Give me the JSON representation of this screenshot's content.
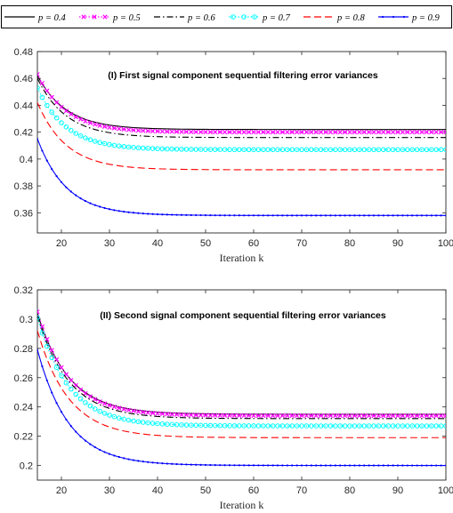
{
  "legend": [
    {
      "label": "p = 0.4",
      "color": "#000000",
      "dash": "solid",
      "marker": "none"
    },
    {
      "label": "p = 0.5",
      "color": "#ff00ff",
      "dash": "dot",
      "marker": "x"
    },
    {
      "label": "p = 0.6",
      "color": "#000000",
      "dash": "dashdot",
      "marker": "none"
    },
    {
      "label": "p = 0.7",
      "color": "#00ffff",
      "dash": "dot",
      "marker": "circle"
    },
    {
      "label": "p = 0.8",
      "color": "#ff0000",
      "dash": "dash",
      "marker": "none"
    },
    {
      "label": "p = 0.9",
      "color": "#0000ff",
      "dash": "solid",
      "marker": "dot"
    }
  ],
  "chart_data": [
    {
      "type": "line",
      "title": "(I) First signal component sequential filtering error variances",
      "xlabel": "Iteration k",
      "ylabel": "",
      "xlim": [
        15,
        100
      ],
      "ylim": [
        0.345,
        0.48
      ],
      "xticks": [
        20,
        30,
        40,
        50,
        60,
        70,
        80,
        90,
        100
      ],
      "yticks": [
        0.36,
        0.38,
        0.4,
        0.42,
        0.44,
        0.46,
        0.48
      ],
      "ytick_labels": [
        "0.36",
        "0.38",
        "0.4",
        "0.42",
        "0.44",
        "0.46",
        "0.48"
      ],
      "series": [
        {
          "name": "p = 0.4",
          "start": 0.462,
          "end": 0.422,
          "tau": 6.0
        },
        {
          "name": "p = 0.5",
          "start": 0.463,
          "end": 0.42,
          "tau": 6.0
        },
        {
          "name": "p = 0.6",
          "start": 0.46,
          "end": 0.416,
          "tau": 6.0
        },
        {
          "name": "p = 0.7",
          "start": 0.453,
          "end": 0.407,
          "tau": 6.0
        },
        {
          "name": "p = 0.8",
          "start": 0.442,
          "end": 0.392,
          "tau": 6.0
        },
        {
          "name": "p = 0.9",
          "start": 0.415,
          "end": 0.358,
          "tau": 6.0
        }
      ]
    },
    {
      "type": "line",
      "title": "(II) Second signal component sequential filtering error variances",
      "xlabel": "Iteration k",
      "ylabel": "",
      "xlim": [
        15,
        100
      ],
      "ylim": [
        0.19,
        0.32
      ],
      "xticks": [
        20,
        30,
        40,
        50,
        60,
        70,
        80,
        90,
        100
      ],
      "yticks": [
        0.2,
        0.22,
        0.24,
        0.26,
        0.28,
        0.3,
        0.32
      ],
      "ytick_labels": [
        "0.2",
        "0.22",
        "0.24",
        "0.26",
        "0.28",
        "0.3",
        "0.32"
      ],
      "series": [
        {
          "name": "p = 0.4",
          "start": 0.304,
          "end": 0.235,
          "tau": 6.5
        },
        {
          "name": "p = 0.5",
          "start": 0.305,
          "end": 0.234,
          "tau": 6.5
        },
        {
          "name": "p = 0.6",
          "start": 0.302,
          "end": 0.232,
          "tau": 6.5
        },
        {
          "name": "p = 0.7",
          "start": 0.301,
          "end": 0.227,
          "tau": 6.5
        },
        {
          "name": "p = 0.8",
          "start": 0.292,
          "end": 0.219,
          "tau": 6.5
        },
        {
          "name": "p = 0.9",
          "start": 0.279,
          "end": 0.2,
          "tau": 6.5
        }
      ]
    }
  ]
}
